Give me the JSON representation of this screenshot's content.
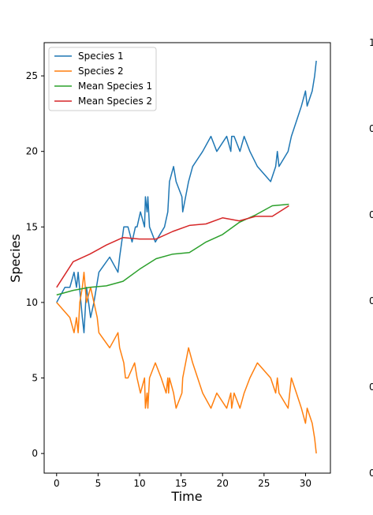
{
  "chart_data": {
    "type": "line",
    "xlabel": "Time",
    "ylabel": "Species",
    "xlim": [
      -1.5,
      33.0
    ],
    "ylim": [
      -1.3,
      27.2
    ],
    "xticks": [
      0,
      5,
      10,
      15,
      20,
      25,
      30
    ],
    "yticks": [
      0,
      5,
      10,
      15,
      20,
      25
    ],
    "legend_position": "top-left",
    "series": [
      {
        "name": "Species 1",
        "color": "#1f77b4",
        "x": [
          0,
          1,
          1.6,
          2.1,
          2.4,
          2.6,
          3.1,
          3.3,
          3.6,
          4.1,
          4.5,
          5.1,
          6.4,
          7.4,
          7.6,
          8.1,
          8.6,
          9.1,
          9.5,
          9.7,
          10.1,
          10.6,
          10.7,
          10.9,
          11.0,
          11.2,
          11.9,
          13.0,
          13.4,
          13.6,
          14.1,
          14.4,
          15.1,
          15.2,
          15.9,
          16.4,
          17.6,
          18.6,
          19.3,
          20.5,
          21.0,
          21.1,
          21.4,
          22.1,
          22.6,
          23.3,
          24.2,
          25.8,
          26.4,
          26.6,
          26.8,
          27.9,
          28.3,
          28.9,
          29.5,
          30.0,
          30.2,
          30.8,
          31.1,
          31.3
        ],
        "y": [
          10,
          11,
          11,
          12,
          11,
          12,
          9,
          8,
          11,
          9,
          10,
          12,
          13,
          12,
          13,
          15,
          15,
          14,
          15,
          15,
          16,
          15,
          17,
          16,
          17,
          15,
          14,
          15,
          16,
          18,
          19,
          18,
          17,
          16,
          18,
          19,
          20,
          21,
          20,
          21,
          20,
          21,
          21,
          20,
          21,
          20,
          19,
          18,
          19,
          20,
          19,
          20,
          21,
          22,
          23,
          24,
          23,
          24,
          25,
          26
        ]
      },
      {
        "name": "Species 2",
        "color": "#ff7f0e",
        "x": [
          0,
          1.6,
          2.1,
          2.4,
          2.6,
          2.8,
          3.1,
          3.3,
          3.6,
          4.1,
          4.5,
          4.9,
          5.1,
          6.4,
          7.4,
          7.6,
          8.1,
          8.3,
          8.6,
          9.4,
          9.7,
          10.1,
          10.6,
          10.7,
          10.9,
          11.0,
          11.2,
          11.9,
          12.6,
          13.2,
          13.4,
          13.5,
          13.6,
          14.1,
          14.4,
          15.1,
          15.2,
          15.9,
          16.4,
          17.6,
          18.6,
          19.3,
          20.5,
          21.0,
          21.1,
          21.4,
          22.1,
          22.6,
          23.3,
          24.2,
          25.8,
          26.4,
          26.6,
          26.8,
          27.9,
          28.3,
          28.9,
          29.5,
          30.0,
          30.2,
          30.8,
          31.1,
          31.3
        ],
        "y": [
          10,
          9,
          8,
          9,
          8,
          10,
          11,
          12,
          10,
          11,
          10,
          9,
          8,
          7,
          8,
          7,
          6,
          5,
          5,
          6,
          5,
          4,
          5,
          3,
          4,
          3,
          5,
          6,
          5,
          4,
          5,
          4,
          5,
          4,
          3,
          4,
          5,
          7,
          6,
          4,
          3,
          4,
          3,
          4,
          3,
          4,
          3,
          4,
          5,
          6,
          5,
          4,
          5,
          4,
          3,
          5,
          4,
          3,
          2,
          3,
          2,
          1,
          0
        ]
      },
      {
        "name": "Mean Species 1",
        "color": "#2ca02c",
        "x": [
          0,
          2,
          4,
          6,
          8,
          10,
          12,
          14,
          16,
          18,
          20,
          22,
          24,
          26,
          28
        ],
        "y": [
          10.5,
          10.8,
          11.0,
          11.1,
          11.4,
          12.2,
          12.9,
          13.2,
          13.3,
          14.0,
          14.5,
          15.3,
          15.8,
          16.4,
          16.5
        ]
      },
      {
        "name": "Mean Species 2",
        "color": "#d62728",
        "x": [
          0,
          2,
          4,
          6,
          8,
          10,
          12,
          14,
          16,
          18,
          20,
          22,
          24,
          26,
          28
        ],
        "y": [
          11.0,
          12.7,
          13.2,
          13.8,
          14.3,
          14.2,
          14.2,
          14.7,
          15.1,
          15.2,
          15.6,
          15.4,
          15.7,
          15.7,
          16.4
        ]
      }
    ],
    "right_panel_tick_labels": [
      "1",
      "0",
      "0",
      "0",
      "0",
      "0"
    ]
  }
}
